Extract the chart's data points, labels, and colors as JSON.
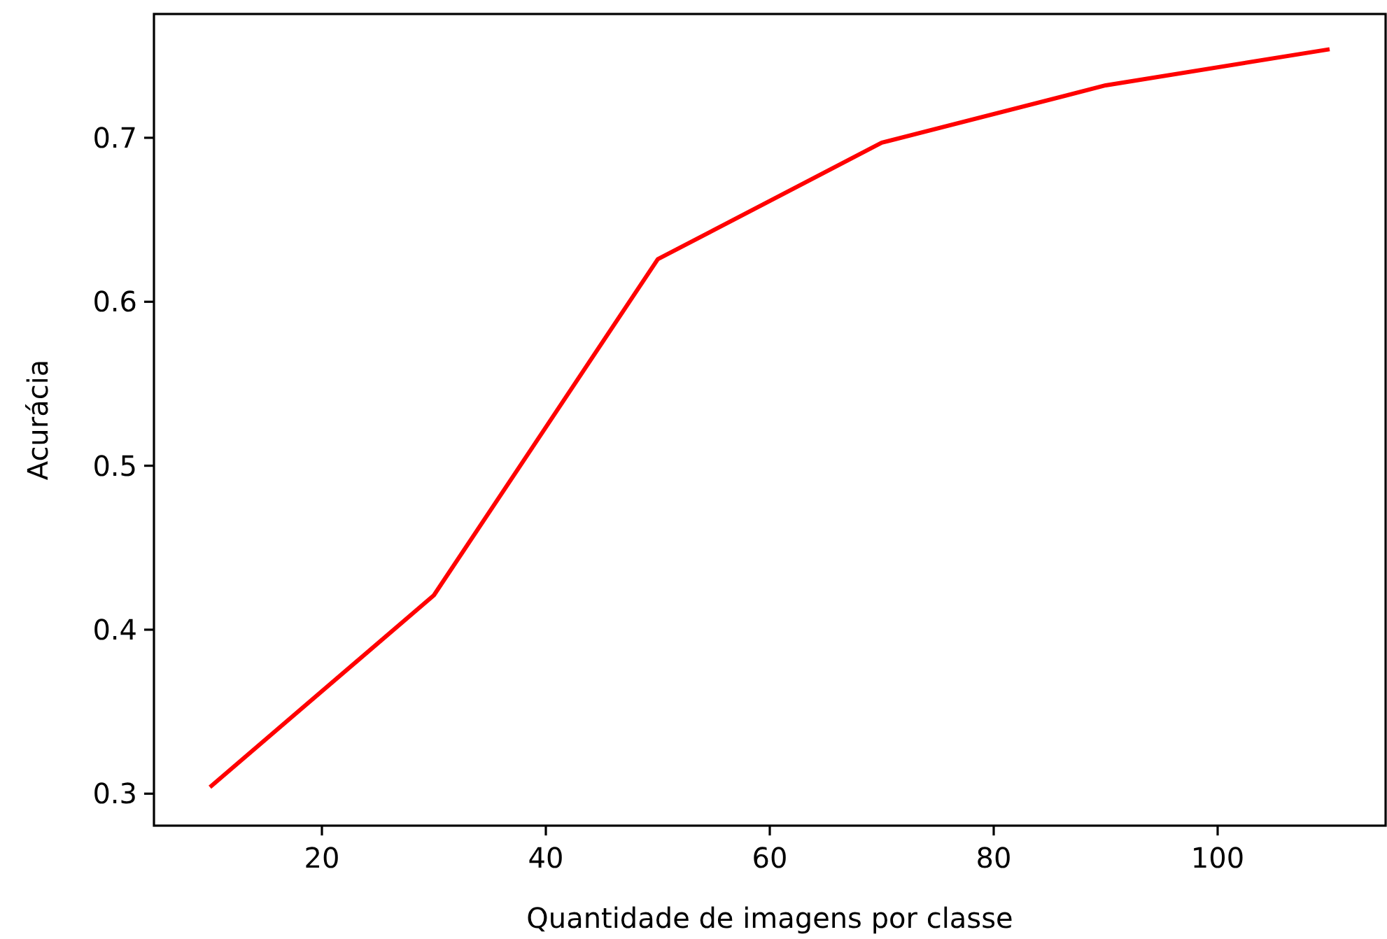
{
  "chart_data": {
    "type": "line",
    "xlabel": "Quantidade de imagens por classe",
    "ylabel": "Acurácia",
    "x": [
      10,
      30,
      50,
      70,
      90,
      110
    ],
    "series": [
      {
        "color": "#ff0000",
        "values": [
          0.304,
          0.421,
          0.626,
          0.697,
          0.732,
          0.754
        ]
      }
    ],
    "xlim": [
      5,
      115
    ],
    "xticks": [
      20,
      40,
      60,
      80,
      100
    ],
    "ylim": [
      0.2805,
      0.7755
    ],
    "yticks": [
      0.3,
      0.4,
      0.5,
      0.6,
      0.7
    ],
    "line_style": "solid"
  }
}
